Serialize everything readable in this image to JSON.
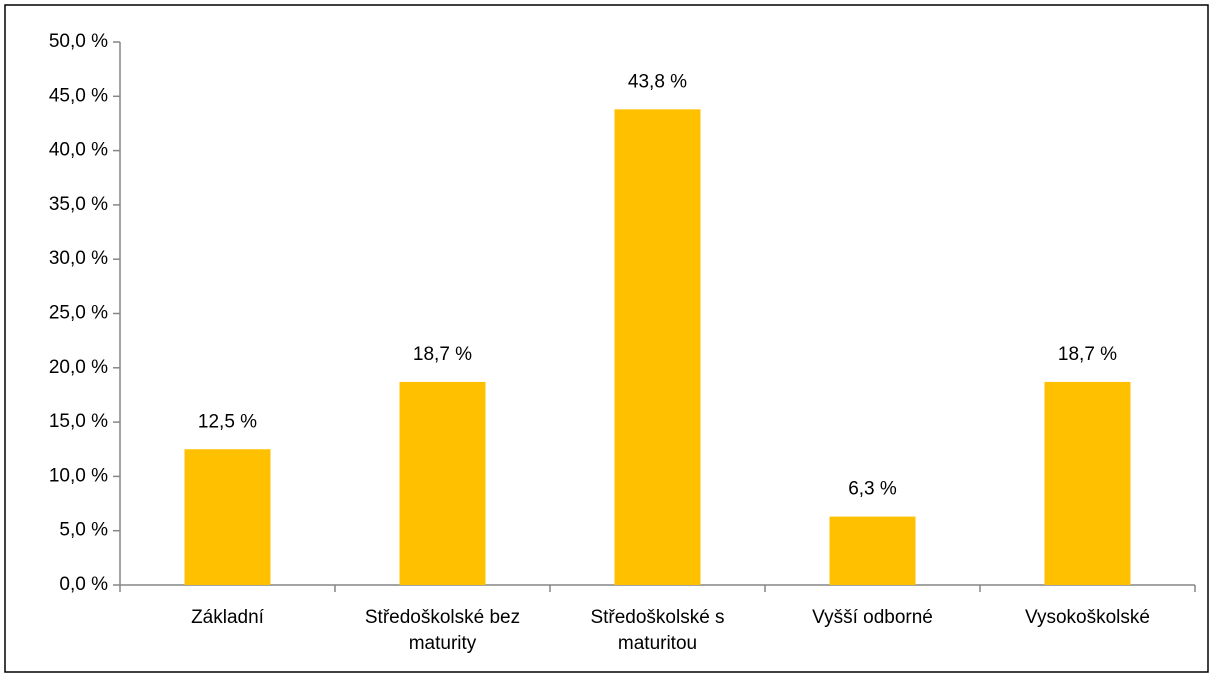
{
  "chart_data": {
    "type": "bar",
    "categories": [
      "Základní",
      "Středoškolské bez maturity",
      "Středoškolské s maturitou",
      "Vyšší odborné",
      "Vysokoškolské"
    ],
    "values": [
      12.5,
      18.7,
      43.8,
      6.3,
      18.7
    ],
    "value_labels": [
      "12,5 %",
      "18,7 %",
      "43,8 %",
      "6,3 %",
      "18,7 %"
    ],
    "color": "#ffc000",
    "ylim": [
      0,
      50
    ],
    "yticks": [
      {
        "value": 0,
        "label": "0,0 %"
      },
      {
        "value": 5,
        "label": "5,0 %"
      },
      {
        "value": 10,
        "label": "10,0 %"
      },
      {
        "value": 15,
        "label": "15,0 %"
      },
      {
        "value": 20,
        "label": "20,0 %"
      },
      {
        "value": 25,
        "label": "25,0 %"
      },
      {
        "value": 30,
        "label": "30,0 %"
      },
      {
        "value": 35,
        "label": "35,0 %"
      },
      {
        "value": 40,
        "label": "40,0 %"
      },
      {
        "value": 45,
        "label": "45,0 %"
      },
      {
        "value": 50,
        "label": "50,0 %"
      }
    ],
    "grid": false
  }
}
